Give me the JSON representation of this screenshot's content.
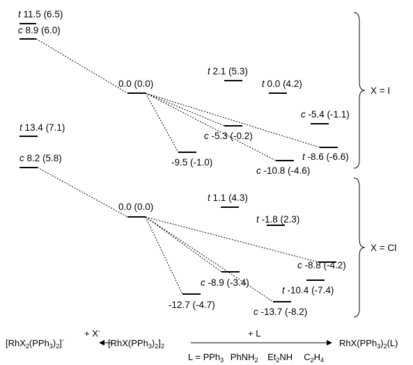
{
  "panel_I": {
    "bracket_label": "X = I",
    "levels": [
      {
        "prefix": "t",
        "pre": "",
        "value": "11.5",
        "post": " (6.5)"
      },
      {
        "prefix": "c",
        "pre": "",
        "value": "8.9",
        "post": " (6.0)"
      },
      {
        "prefix": "",
        "pre": "",
        "value": "0.0",
        "post": " (0.0)"
      },
      {
        "prefix": "t",
        "pre": "",
        "value": "2.1",
        "post": " (5.3)"
      },
      {
        "prefix": "t",
        "pre": "",
        "value": "0.0",
        "post": " (4.2)"
      },
      {
        "prefix": "c",
        "pre": "",
        "value": "-5.4",
        "post": " (-1.1)"
      },
      {
        "prefix": "c",
        "pre": "",
        "value": "-5.3",
        "post": " (-0.2)"
      },
      {
        "prefix": "t",
        "pre": "",
        "value": "-8.6",
        "post": " (-6.6)"
      },
      {
        "prefix": "",
        "pre": "",
        "value": "-9.5",
        "post": " (-1.0)"
      },
      {
        "prefix": "c",
        "pre": "",
        "value": "-10.8",
        "post": " (-4.6)"
      }
    ]
  },
  "panel_Cl": {
    "bracket_label": "X = Cl",
    "levels": [
      {
        "prefix": "t",
        "pre": "",
        "value": "13.4",
        "post": " (7.1)"
      },
      {
        "prefix": "c",
        "pre": "",
        "value": "8.2",
        "post": " (5.8)"
      },
      {
        "prefix": "",
        "pre": "",
        "value": "0.0",
        "post": " (0.0)"
      },
      {
        "prefix": "t",
        "pre": "",
        "value": "1.1",
        "post": " (4.3)"
      },
      {
        "prefix": "t",
        "pre": "",
        "value": "-1.8",
        "post": " (2.3)"
      },
      {
        "prefix": "c",
        "pre": "",
        "value": "-8.8",
        "post": " (-4.2)"
      },
      {
        "prefix": "c",
        "pre": "",
        "value": "-8.9",
        "post": " (-3.4)"
      },
      {
        "prefix": "t",
        "pre": "",
        "value": "-10.4",
        "post": " (-7.4)"
      },
      {
        "prefix": "",
        "pre": "",
        "value": "-12.7",
        "post": " (-4.7)"
      },
      {
        "prefix": "c",
        "pre": "",
        "value": "-13.7",
        "post": " (-8.2)"
      }
    ]
  },
  "equation": {
    "left_base": "[RhX",
    "left_sub1": "2",
    "left_mid": "(PPh",
    "left_sub2": "3",
    "left_close": ")",
    "left_sub3": "2",
    "left_end": "]",
    "left_sup": "-",
    "reagent_left": "+ X",
    "reagent_left_sup": "-",
    "center_base": "[RhX(PPh",
    "center_sub1": "3",
    "center_close": ")",
    "center_sub2": "2",
    "center_end": "]",
    "center_sub3": "2",
    "reagent_right": "+ L",
    "right_base": "RhX(PPh",
    "right_sub1": "3",
    "right_close": ")",
    "right_sub2": "2",
    "right_end": "(L)",
    "ligands_prefix": "L = PPh",
    "ligands_sub1": "3",
    "ligand2": "PhNH",
    "ligand2_sub": "2",
    "ligand3": "Et",
    "ligand3_sub": "2",
    "ligand3_end": "NH",
    "ligand4": "C",
    "ligand4_sub1": "2",
    "ligand4_end": "H",
    "ligand4_sub2": "4"
  }
}
